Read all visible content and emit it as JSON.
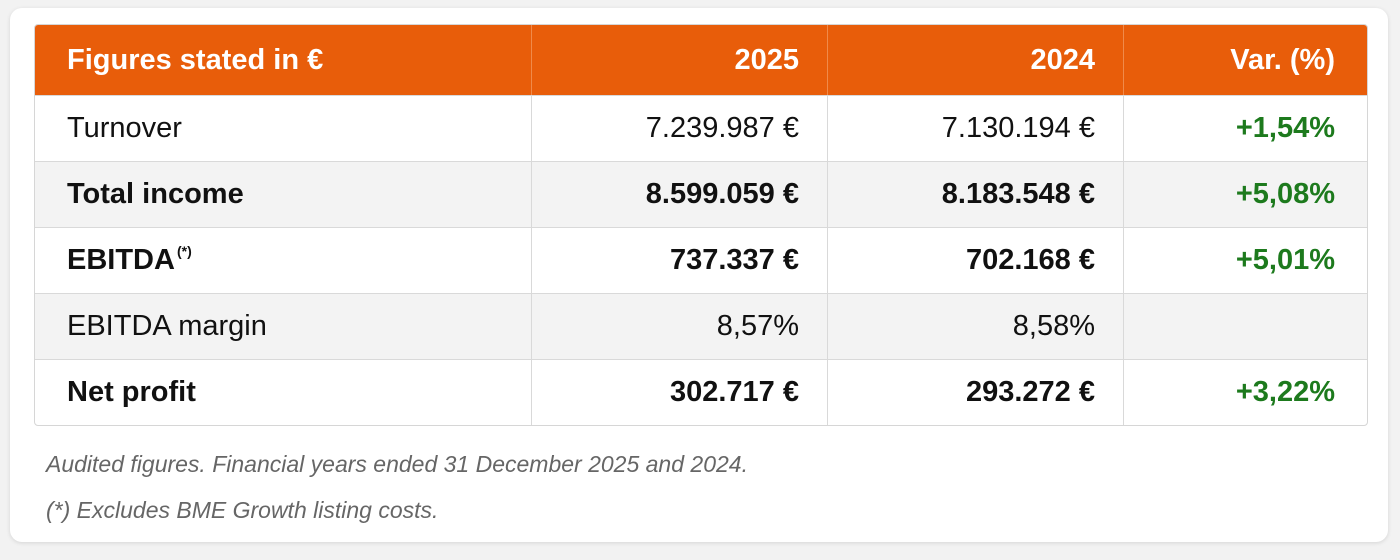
{
  "table": {
    "headers": [
      "Figures stated in €",
      "2025",
      "2024",
      "Var. (%)"
    ],
    "rows": [
      {
        "label": "Turnover",
        "label_sup": "",
        "v2025": "7.239.987 €",
        "v2024": "7.130.194 €",
        "var": "+1,54%",
        "bold": false
      },
      {
        "label": "Total income",
        "label_sup": "",
        "v2025": "8.599.059 €",
        "v2024": "8.183.548 €",
        "var": "+5,08%",
        "bold": true
      },
      {
        "label": "EBITDA",
        "label_sup": "(*)",
        "v2025": "737.337 €",
        "v2024": "702.168 €",
        "var": "+5,01%",
        "bold": true
      },
      {
        "label": "EBITDA margin",
        "label_sup": "",
        "v2025": "8,57%",
        "v2024": "8,58%",
        "var": "",
        "bold": false
      },
      {
        "label": "Net profit",
        "label_sup": "",
        "v2025": "302.717 €",
        "v2024": "293.272 €",
        "var": "+3,22%",
        "bold": true
      }
    ]
  },
  "notes": [
    "Audited figures. Financial years ended 31 December 2025 and 2024.",
    "(*) Excludes BME Growth listing costs."
  ],
  "colors": {
    "header_bg": "#e85d0a",
    "header_text": "#ffffff",
    "positive_var": "#1d7a1d",
    "shaded_row": "#f3f3f3"
  }
}
